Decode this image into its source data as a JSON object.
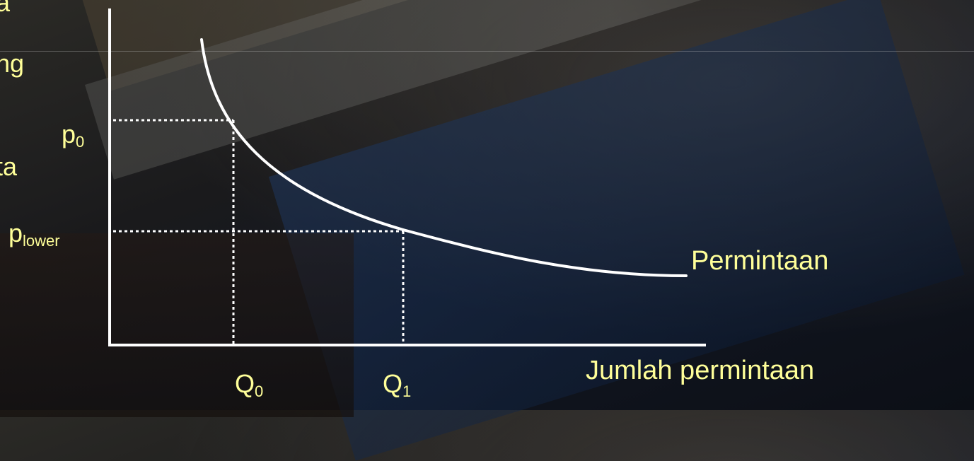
{
  "slide": {
    "left_text_fragments": [
      "a",
      "ng",
      "ta"
    ]
  },
  "labels": {
    "p0": {
      "main": "p",
      "sub": "0"
    },
    "plower": {
      "main": "p",
      "sub": "lower"
    },
    "q0": {
      "main": "Q",
      "sub": "0"
    },
    "q1": {
      "main": "Q",
      "sub": "1"
    },
    "curve_label": "Permintaan",
    "x_axis_label": "Jumlah permintaan"
  },
  "colors": {
    "text": "#ffff99",
    "lines": "#ffffff"
  }
}
